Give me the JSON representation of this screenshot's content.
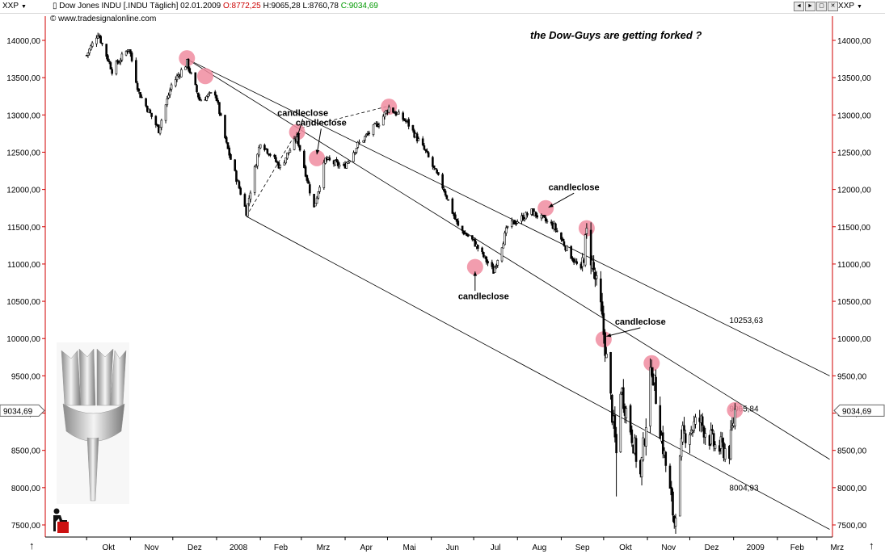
{
  "header": {
    "symbol_left": "XXP",
    "symbol_right": "XXP",
    "instrument": "Dow Jones INDU [.INDU  Täglich] 02.01.2009",
    "open": "O:8772,25",
    "high": "H:9065,28",
    "low": "L:8760,78",
    "close": "C:9034,69",
    "buttons": [
      "◄",
      "►",
      "▢",
      "✕"
    ]
  },
  "watermark": "© www.tradesignalonline.com",
  "colors": {
    "axis_red": "#d00000",
    "marker": "#f08ca0",
    "candle": "#000000"
  },
  "chart_data": {
    "type": "candlestick",
    "title": "the Dow-Guys are getting forked ?",
    "x_ticks": [
      "Okt",
      "Nov",
      "Dez",
      "2008",
      "Feb",
      "Mrz",
      "Apr",
      "Mai",
      "Jun",
      "Jul",
      "Aug",
      "Sep",
      "Okt",
      "Nov",
      "Dez",
      "2009",
      "Feb",
      "Mrz"
    ],
    "y_ticks": [
      "14000,00",
      "13500,00",
      "13000,00",
      "12500,00",
      "12000,00",
      "11500,00",
      "11000,00",
      "10500,00",
      "10000,00",
      "9500,00",
      "9000,00",
      "8500,00",
      "8000,00",
      "7500,00"
    ],
    "ylim": [
      7400,
      14250
    ],
    "current_value_label": "9034,69",
    "series": [
      {
        "name": "Dow Jones INDU",
        "x_start": "2007-10-01",
        "x_end": "2009-01-02",
        "close_path": [
          {
            "date": "2007-10-01",
            "value": 13800
          },
          {
            "date": "2007-10-09",
            "value": 14100
          },
          {
            "date": "2007-10-19",
            "value": 13600
          },
          {
            "date": "2007-10-31",
            "value": 13900
          },
          {
            "date": "2007-11-07",
            "value": 13300
          },
          {
            "date": "2007-11-21",
            "value": 12800
          },
          {
            "date": "2007-11-30",
            "value": 13400
          },
          {
            "date": "2007-12-11",
            "value": 13700
          },
          {
            "date": "2007-12-20",
            "value": 13200
          },
          {
            "date": "2007-12-31",
            "value": 13300
          },
          {
            "date": "2008-01-08",
            "value": 12600
          },
          {
            "date": "2008-01-22",
            "value": 11700
          },
          {
            "date": "2008-02-01",
            "value": 12650
          },
          {
            "date": "2008-02-15",
            "value": 12300
          },
          {
            "date": "2008-02-27",
            "value": 12700
          },
          {
            "date": "2008-03-10",
            "value": 11750
          },
          {
            "date": "2008-03-18",
            "value": 12400
          },
          {
            "date": "2008-03-31",
            "value": 12300
          },
          {
            "date": "2008-04-10",
            "value": 12600
          },
          {
            "date": "2008-04-25",
            "value": 12900
          },
          {
            "date": "2008-05-02",
            "value": 13100
          },
          {
            "date": "2008-05-15",
            "value": 12900
          },
          {
            "date": "2008-05-28",
            "value": 12500
          },
          {
            "date": "2008-06-10",
            "value": 12000
          },
          {
            "date": "2008-06-20",
            "value": 11500
          },
          {
            "date": "2008-07-01",
            "value": 11300
          },
          {
            "date": "2008-07-15",
            "value": 10900
          },
          {
            "date": "2008-07-25",
            "value": 11500
          },
          {
            "date": "2008-08-11",
            "value": 11700
          },
          {
            "date": "2008-08-27",
            "value": 11500
          },
          {
            "date": "2008-09-05",
            "value": 11200
          },
          {
            "date": "2008-09-15",
            "value": 10900
          },
          {
            "date": "2008-09-19",
            "value": 11400
          },
          {
            "date": "2008-09-29",
            "value": 10400
          },
          {
            "date": "2008-10-02",
            "value": 9900
          },
          {
            "date": "2008-10-10",
            "value": 8450
          },
          {
            "date": "2008-10-13",
            "value": 9350
          },
          {
            "date": "2008-10-20",
            "value": 8800
          },
          {
            "date": "2008-10-27",
            "value": 8150
          },
          {
            "date": "2008-11-04",
            "value": 9650
          },
          {
            "date": "2008-11-10",
            "value": 8800
          },
          {
            "date": "2008-11-20",
            "value": 7550
          },
          {
            "date": "2008-11-26",
            "value": 8700
          },
          {
            "date": "2008-12-08",
            "value": 8900
          },
          {
            "date": "2008-12-19",
            "value": 8550
          },
          {
            "date": "2008-12-29",
            "value": 8500
          },
          {
            "date": "2009-01-02",
            "value": 9034.69
          }
        ]
      }
    ],
    "notable_points": [
      {
        "date": "2008-09-29",
        "value": 10365
      },
      {
        "date": "2008-10-10",
        "value": 7882
      },
      {
        "date": "2008-11-20",
        "value": 7449
      }
    ],
    "pitchfork": {
      "pivots": [
        {
          "date": "2007-12-11",
          "value": 13750
        },
        {
          "date": "2008-01-22",
          "value": 11640
        },
        {
          "date": "2008-02-27",
          "value": 12780
        }
      ],
      "upper_line": [
        {
          "date": "2007-12-11",
          "value": 13750
        },
        {
          "date": "2009-03-10",
          "value": 9500
        }
      ],
      "median_line": [
        {
          "date": "2007-12-11",
          "value": 13750
        },
        {
          "date": "2009-03-10",
          "value": 8380
        }
      ],
      "lower_line": [
        {
          "date": "2008-01-22",
          "value": 11640
        },
        {
          "date": "2009-03-10",
          "value": 7440
        }
      ],
      "labels": [
        {
          "text": "10253,63",
          "date": "2008-12-29",
          "value": 10253.63
        },
        {
          "text": "9065,84",
          "date": "2008-12-29",
          "value": 9065.84
        },
        {
          "text": "8004,93",
          "date": "2008-12-29",
          "value": 8004.93
        }
      ]
    },
    "touch_markers": [
      {
        "date": "2007-12-11",
        "value": 13760
      },
      {
        "date": "2007-12-24",
        "value": 13520
      },
      {
        "date": "2008-02-27",
        "value": 12770
      },
      {
        "date": "2008-03-12",
        "value": 12420
      },
      {
        "date": "2008-05-02",
        "value": 13110
      },
      {
        "date": "2008-07-02",
        "value": 10960
      },
      {
        "date": "2008-08-21",
        "value": 11750
      },
      {
        "date": "2008-09-19",
        "value": 11480
      },
      {
        "date": "2008-10-01",
        "value": 9990
      },
      {
        "date": "2008-11-04",
        "value": 9670
      },
      {
        "date": "2009-01-02",
        "value": 9040
      }
    ],
    "annotations": [
      {
        "text": "candleclose",
        "date": "2008-03-02",
        "value": 12985,
        "arrow_to": {
          "date": "2008-02-27",
          "value": 12700
        }
      },
      {
        "text": "candleclose",
        "date": "2008-03-15",
        "value": 12855,
        "arrow_to": {
          "date": "2008-03-12",
          "value": 12470
        }
      },
      {
        "text": "candleclose",
        "date": "2008-07-08",
        "value": 10530,
        "arrow_from": {
          "date": "2008-07-02",
          "value": 10640
        },
        "arrow_to": {
          "date": "2008-07-02",
          "value": 10900
        }
      },
      {
        "text": "candleclose",
        "date": "2008-09-10",
        "value": 11990,
        "arrow_to": {
          "date": "2008-08-23",
          "value": 11760
        }
      },
      {
        "text": "candleclose",
        "date": "2008-10-27",
        "value": 10185,
        "arrow_to": {
          "date": "2008-10-03",
          "value": 10030
        }
      }
    ]
  }
}
